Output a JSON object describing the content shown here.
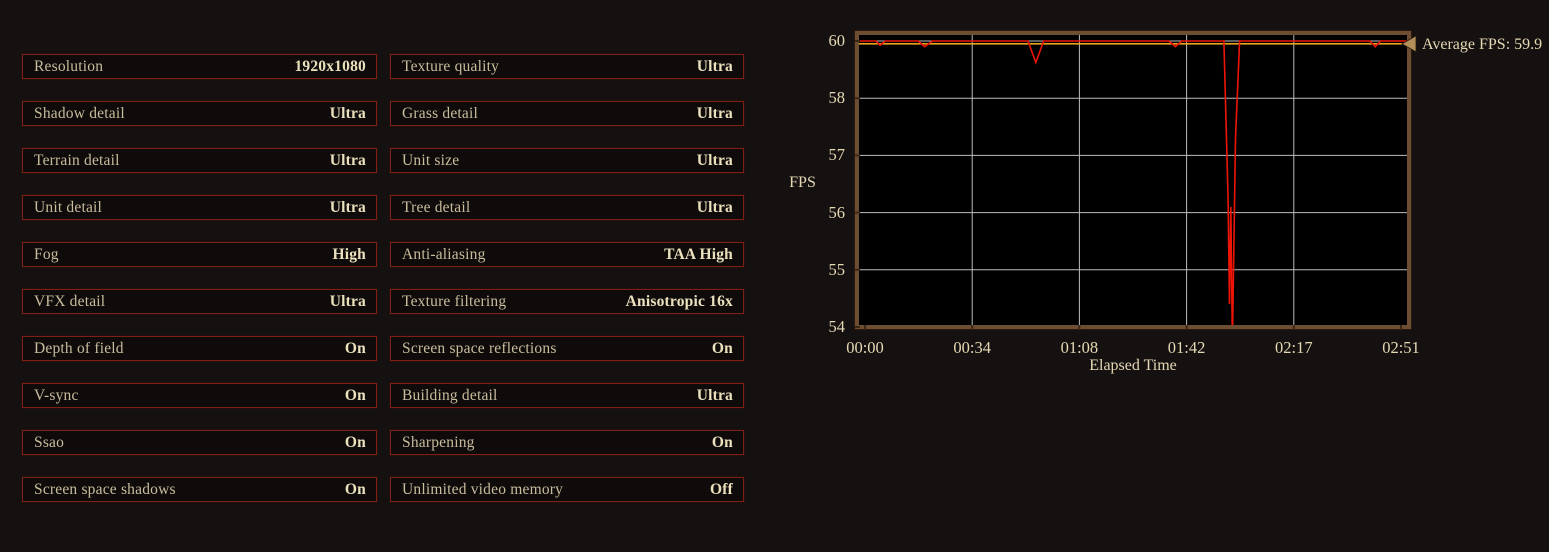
{
  "page": {
    "background": "#161111"
  },
  "settings": {
    "left": [
      {
        "label": "Resolution",
        "value": "1920x1080"
      },
      {
        "label": "Shadow detail",
        "value": "Ultra"
      },
      {
        "label": "Terrain detail",
        "value": "Ultra"
      },
      {
        "label": "Unit detail",
        "value": "Ultra"
      },
      {
        "label": "Fog",
        "value": "High"
      },
      {
        "label": "VFX detail",
        "value": "Ultra"
      },
      {
        "label": "Depth of field",
        "value": "On"
      },
      {
        "label": "V-sync",
        "value": "On"
      },
      {
        "label": "Ssao",
        "value": "On"
      },
      {
        "label": "Screen space shadows",
        "value": "On"
      }
    ],
    "right": [
      {
        "label": "Texture quality",
        "value": "Ultra"
      },
      {
        "label": "Grass detail",
        "value": "Ultra"
      },
      {
        "label": "Unit size",
        "value": "Ultra"
      },
      {
        "label": "Tree detail",
        "value": "Ultra"
      },
      {
        "label": "Anti-aliasing",
        "value": "TAA High"
      },
      {
        "label": "Texture filtering",
        "value": "Anisotropic 16x"
      },
      {
        "label": "Screen space reflections",
        "value": "On"
      },
      {
        "label": "Building detail",
        "value": "Ultra"
      },
      {
        "label": "Sharpening",
        "value": "On"
      },
      {
        "label": "Unlimited video memory",
        "value": "Off"
      }
    ]
  },
  "chart_data": {
    "type": "line",
    "title": "",
    "ylabel": "FPS",
    "xlabel": "Elapsed Time",
    "average_label": "Average FPS: 59.9",
    "average_fps": 59.9,
    "ylim": [
      54,
      60
    ],
    "y_ticks": [
      "60",
      "58",
      "57",
      "56",
      "55",
      "54"
    ],
    "x_ticks": [
      "00:00",
      "00:34",
      "01:08",
      "01:42",
      "02:17",
      "02:51"
    ],
    "x_total_seconds": 171,
    "grid": true,
    "legend_position": "none",
    "colors": {
      "line": "#ee1507",
      "average_line": "#e7a41c",
      "grid": "#bdbdbd",
      "plot_bg": "#000000",
      "frame": "#6e4e33",
      "marker": "#b3905a",
      "text": "#e5d9b4"
    },
    "series": [
      {
        "name": "FPS",
        "points": [
          [
            0,
            60
          ],
          [
            3.5,
            60
          ],
          [
            4.8,
            59.85
          ],
          [
            6.5,
            60
          ],
          [
            17,
            60
          ],
          [
            19,
            59.8
          ],
          [
            21.5,
            60
          ],
          [
            52,
            60
          ],
          [
            54.5,
            59.25
          ],
          [
            57,
            60
          ],
          [
            97,
            60
          ],
          [
            99,
            59.8
          ],
          [
            101,
            60
          ],
          [
            114.5,
            60
          ],
          [
            115.8,
            56.3
          ],
          [
            116.3,
            54.4
          ],
          [
            116.7,
            56.1
          ],
          [
            117.2,
            53.7
          ],
          [
            118.2,
            57.3
          ],
          [
            119.5,
            60
          ],
          [
            161,
            60
          ],
          [
            162.8,
            59.8
          ],
          [
            164.5,
            60
          ],
          [
            171,
            60
          ]
        ]
      }
    ]
  }
}
